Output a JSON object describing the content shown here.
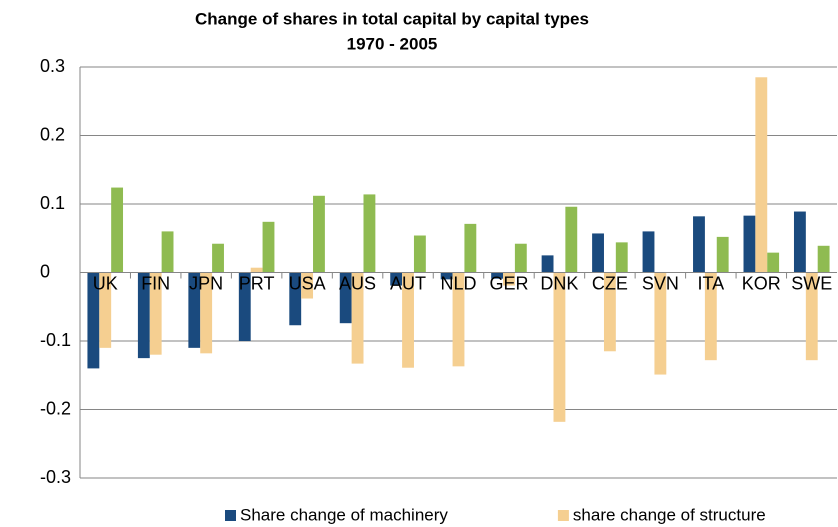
{
  "chart_data": {
    "type": "bar",
    "title": "Change of shares in total capital by capital types",
    "subtitle": "1970 - 2005",
    "categories": [
      "UK",
      "FIN",
      "JPN",
      "PRT",
      "USA",
      "AUS",
      "AUT",
      "NLD",
      "GER",
      "DNK",
      "CZE",
      "SVN",
      "ITA",
      "KOR",
      "SWE"
    ],
    "series": [
      {
        "name": "Share change of machinery",
        "color": "#1a4a7e",
        "values": [
          -0.14,
          -0.125,
          -0.11,
          -0.1,
          -0.077,
          -0.074,
          -0.019,
          -0.01,
          -0.009,
          0.025,
          0.057,
          0.06,
          0.082,
          0.083,
          0.089
        ]
      },
      {
        "name": "share change of structure",
        "color": "#f5cf91",
        "values": [
          -0.11,
          -0.12,
          -0.118,
          0.007,
          -0.038,
          -0.133,
          -0.139,
          -0.137,
          -0.019,
          -0.218,
          -0.115,
          -0.149,
          -0.128,
          0.285,
          -0.128
        ]
      },
      {
        "color": "#8fbb51",
        "values": [
          0.124,
          0.06,
          0.042,
          0.074,
          0.112,
          0.114,
          0.054,
          0.071,
          0.042,
          0.096,
          0.044,
          null,
          0.052,
          0.029,
          0.039
        ]
      }
    ],
    "ylim": [
      -0.3,
      0.3
    ],
    "yticks": [
      -0.3,
      -0.2,
      -0.1,
      0,
      0.1,
      0.2,
      0.3
    ],
    "grid": true
  }
}
